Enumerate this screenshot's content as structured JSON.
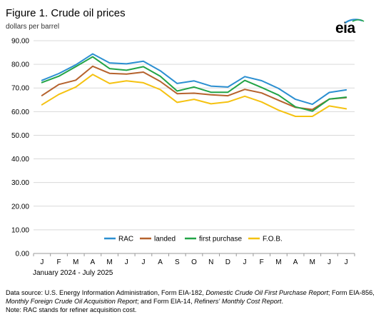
{
  "header": {
    "title": "Figure 1. Crude oil prices",
    "subtitle": "dollars per barrel",
    "logo": "eia"
  },
  "footer": {
    "range": "January 2024   -   July 2025",
    "source_parts": [
      {
        "text": "Data source: U.S. Energy Information Administration, Form EIA-182, ",
        "italic": false
      },
      {
        "text": "Domestic Crude Oil First Purchase Report",
        "italic": true
      },
      {
        "text": "; Form EIA-856, ",
        "italic": false
      },
      {
        "text": "Monthly Foreign Crude Oil Acquisition Report",
        "italic": true
      },
      {
        "text": "; and Form EIA-14, ",
        "italic": false
      },
      {
        "text": "Refiners' Monthly Cost Report",
        "italic": true
      },
      {
        "text": ".",
        "italic": false
      }
    ],
    "note": "Note: RAC stands for refiner acquisition cost."
  },
  "chart_data": {
    "type": "line",
    "categories": [
      "J",
      "F",
      "M",
      "A",
      "M",
      "J",
      "J",
      "A",
      "S",
      "O",
      "N",
      "D",
      "J",
      "F",
      "M",
      "A",
      "M",
      "J",
      "J"
    ],
    "ylim": [
      0,
      90
    ],
    "yticks": [
      0,
      10,
      20,
      30,
      40,
      50,
      60,
      70,
      80,
      90
    ],
    "ytick_labels": [
      "0.00",
      "10.00",
      "20.00",
      "30.00",
      "40.00",
      "50.00",
      "60.00",
      "70.00",
      "80.00",
      "90.00"
    ],
    "grid": true,
    "legend_position": "bottom",
    "series": [
      {
        "name": "RAC",
        "color": "#2b8fd1",
        "values": [
          73.2,
          76.1,
          79.8,
          84.4,
          80.6,
          80.2,
          81.3,
          77.3,
          71.9,
          73.0,
          70.8,
          70.4,
          74.8,
          73.1,
          69.8,
          65.2,
          63.1,
          68.1,
          69.2
        ]
      },
      {
        "name": "landed",
        "color": "#b5622d",
        "values": [
          66.8,
          71.5,
          73.3,
          79.2,
          76.2,
          75.9,
          76.7,
          72.8,
          67.6,
          67.8,
          67.1,
          66.7,
          69.4,
          67.9,
          64.8,
          61.8,
          60.9,
          65.3,
          65.9
        ]
      },
      {
        "name": "first purchase",
        "color": "#22a447",
        "values": [
          72.3,
          75.0,
          79.0,
          83.2,
          78.2,
          77.5,
          79.0,
          75.0,
          68.7,
          70.4,
          68.2,
          68.2,
          73.2,
          70.2,
          67.0,
          62.0,
          60.2,
          65.3,
          66.1
        ]
      },
      {
        "name": "F.O.B.",
        "color": "#f5c211",
        "values": [
          62.9,
          67.3,
          70.4,
          75.7,
          71.9,
          73.0,
          72.2,
          69.3,
          63.9,
          65.2,
          63.3,
          64.1,
          66.5,
          64.1,
          60.6,
          58.0,
          58.0,
          62.4,
          61.2
        ]
      }
    ]
  }
}
